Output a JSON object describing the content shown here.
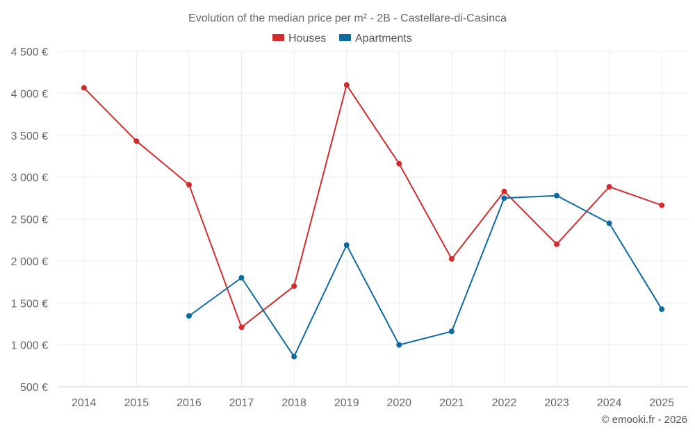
{
  "chart_data": {
    "type": "line",
    "title": "Evolution of the median price per m² - 2B - Castellare-di-Casinca",
    "x": [
      "2014",
      "2015",
      "2016",
      "2017",
      "2018",
      "2019",
      "2020",
      "2021",
      "2022",
      "2023",
      "2024",
      "2025"
    ],
    "ylim": [
      500,
      4500
    ],
    "yticks": [
      500,
      1000,
      1500,
      2000,
      2500,
      3000,
      3500,
      4000,
      4500
    ],
    "ytick_labels": [
      "500 €",
      "1 000 €",
      "1 500 €",
      "2 000 €",
      "2 500 €",
      "3 000 €",
      "3 500 €",
      "4 000 €",
      "4 500 €"
    ],
    "legend_position": "top-center",
    "grid": true,
    "series": [
      {
        "name": "Houses",
        "color": "#d22b2b",
        "values": [
          4065,
          3430,
          2910,
          1210,
          1700,
          4100,
          3160,
          2025,
          2830,
          2200,
          2885,
          2665
        ]
      },
      {
        "name": "Apartments",
        "color": "#0d6aa0",
        "values": [
          null,
          null,
          1345,
          1800,
          860,
          2190,
          1000,
          1160,
          2750,
          2780,
          2450,
          1425
        ]
      }
    ]
  },
  "credit": "© emooki.fr - 2026"
}
